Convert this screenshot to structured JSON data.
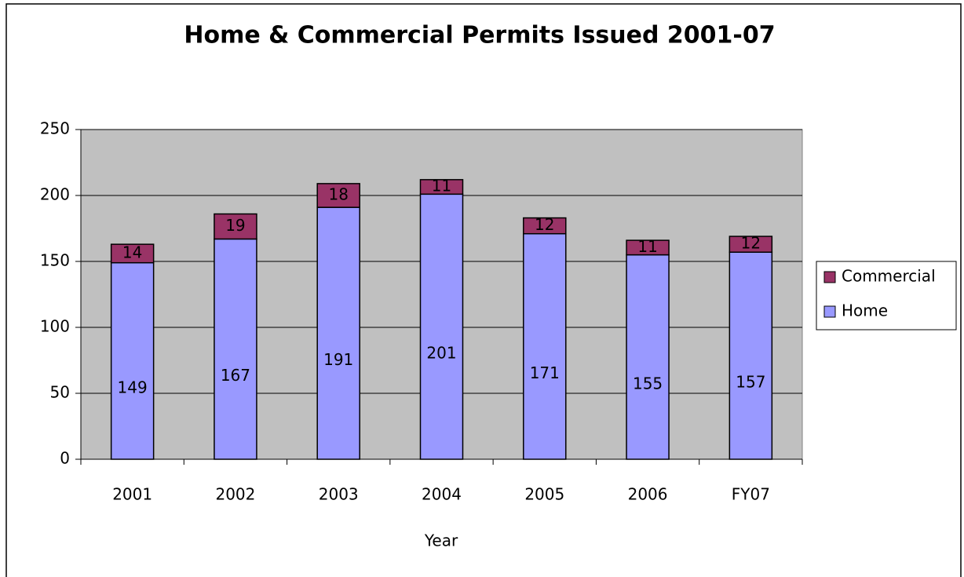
{
  "chart_data": {
    "type": "bar",
    "stacked": true,
    "title": "Home & Commercial Permits Issued 2001-07",
    "x_label": "Year",
    "categories": [
      "2001",
      "2002",
      "2003",
      "2004",
      "2005",
      "2006",
      "FY07"
    ],
    "series": [
      {
        "name": "Home",
        "color": "#9999ff",
        "values": [
          149,
          167,
          191,
          201,
          171,
          155,
          157
        ]
      },
      {
        "name": "Commercial",
        "color": "#993366",
        "values": [
          14,
          19,
          18,
          11,
          12,
          11,
          12
        ]
      }
    ],
    "ylim": [
      0,
      250
    ],
    "yticks": [
      0,
      50,
      100,
      150,
      200,
      250
    ],
    "grid": true,
    "plot_background": "#c0c0c0",
    "legend": "right"
  }
}
